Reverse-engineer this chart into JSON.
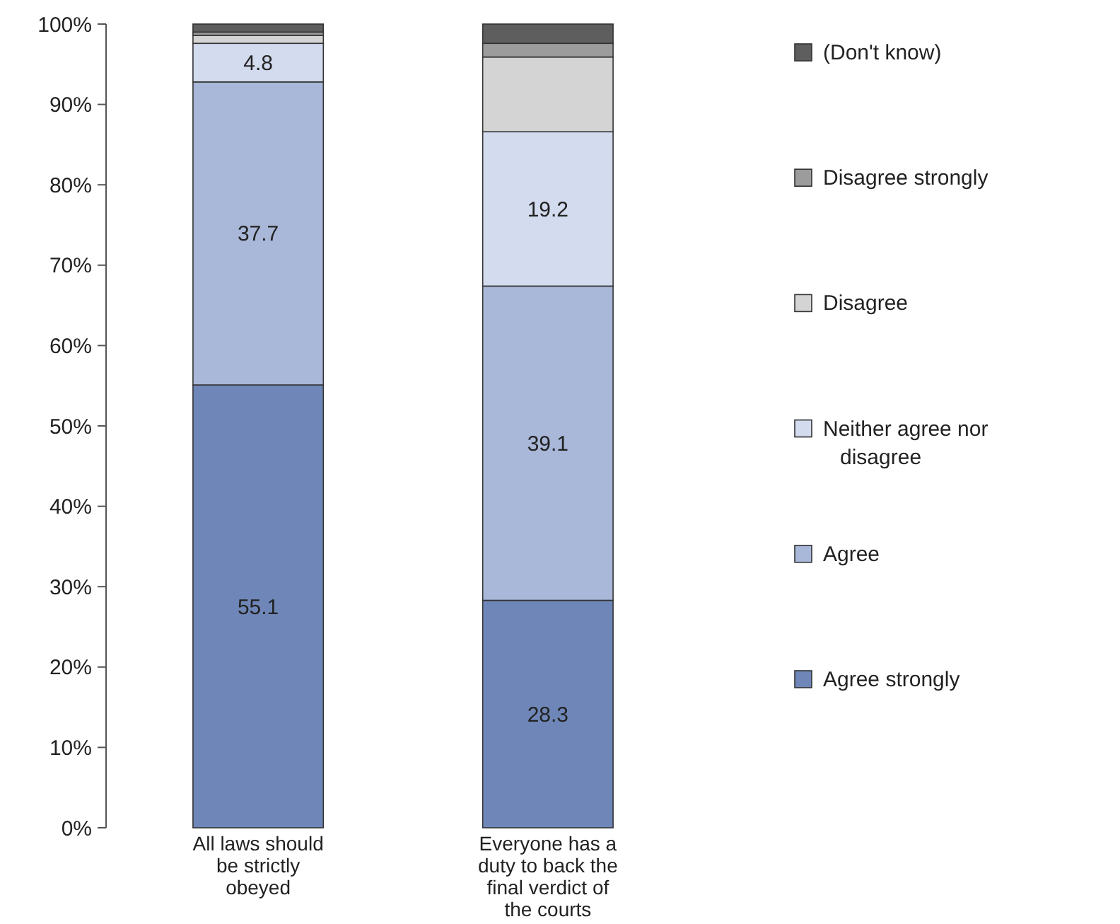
{
  "chart_data": {
    "type": "bar",
    "stacked": true,
    "categories": [
      "All laws should be strictly obeyed",
      "Everyone has a duty to back the final verdict of the courts"
    ],
    "series": [
      {
        "name": "Agree strongly",
        "color": "#6f87b8",
        "values": [
          55.1,
          28.3
        ],
        "value_labels": [
          "55.1",
          "28.3"
        ]
      },
      {
        "name": "Agree",
        "color": "#a9b7d8",
        "values": [
          37.7,
          39.1
        ],
        "value_labels": [
          "37.7",
          "39.1"
        ]
      },
      {
        "name": "Neither agree nor disagree",
        "color": "#d3dbee",
        "values": [
          4.8,
          19.2
        ],
        "value_labels": [
          "4.8",
          "19.2"
        ]
      },
      {
        "name": "Disagree",
        "color": "#d4d4d4",
        "values": [
          1.0,
          9.3
        ],
        "value_labels": [
          null,
          null
        ]
      },
      {
        "name": "Disagree strongly",
        "color": "#9c9c9c",
        "values": [
          0.4,
          1.7
        ],
        "value_labels": [
          null,
          null
        ]
      },
      {
        "name": "(Don't know)",
        "color": "#5e5e5e",
        "values": [
          1.0,
          2.4
        ],
        "value_labels": [
          null,
          null
        ]
      }
    ],
    "ylim": [
      0,
      100
    ],
    "yticks": [
      {
        "value": 0,
        "label": "0%"
      },
      {
        "value": 10,
        "label": "10%"
      },
      {
        "value": 20,
        "label": "20%"
      },
      {
        "value": 30,
        "label": "30%"
      },
      {
        "value": 40,
        "label": "40%"
      },
      {
        "value": 50,
        "label": "50%"
      },
      {
        "value": 60,
        "label": "60%"
      },
      {
        "value": 70,
        "label": "70%"
      },
      {
        "value": 80,
        "label": "80%"
      },
      {
        "value": 90,
        "label": "90%"
      },
      {
        "value": 100,
        "label": "100%"
      }
    ],
    "grid": false,
    "legend": "right"
  }
}
